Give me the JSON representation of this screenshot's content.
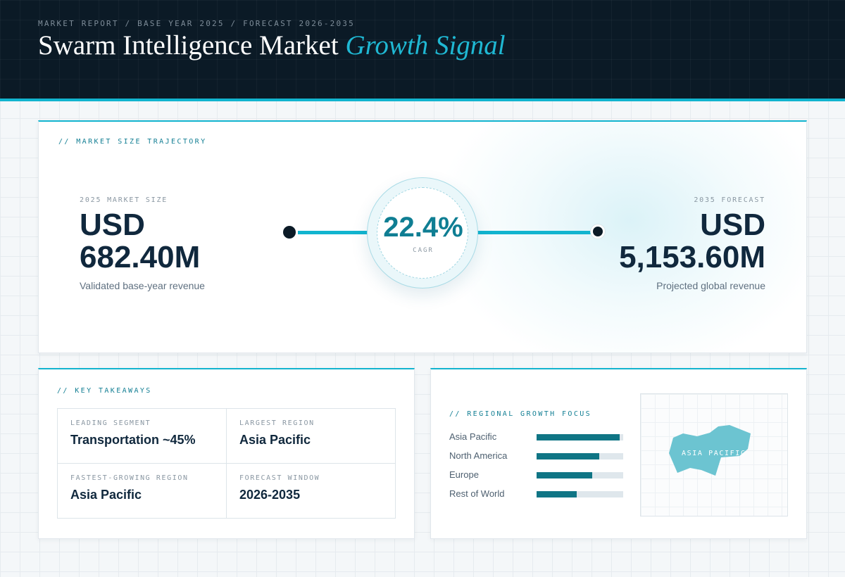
{
  "header": {
    "breadcrumb": "MARKET REPORT / BASE YEAR 2025 / FORECAST 2026-2035",
    "title_main": "Swarm Intelligence Market",
    "title_accent": "Growth Signal"
  },
  "trajectory": {
    "label": "// MARKET SIZE TRAJECTORY",
    "start": {
      "caption": "2025 MARKET SIZE",
      "currency": "USD",
      "value": "682.40M",
      "sub": "Validated base-year revenue"
    },
    "cagr": {
      "value": "22.4%",
      "label": "CAGR"
    },
    "end": {
      "caption": "2035 FORECAST",
      "currency": "USD",
      "value": "5,153.60M",
      "sub": "Projected global revenue"
    }
  },
  "takeaways": {
    "label": "// KEY TAKEAWAYS",
    "items": [
      {
        "caption": "LEADING SEGMENT",
        "value": "Transportation ~45%"
      },
      {
        "caption": "LARGEST REGION",
        "value": "Asia Pacific"
      },
      {
        "caption": "FASTEST-GROWING REGION",
        "value": "Asia Pacific"
      },
      {
        "caption": "FORECAST WINDOW",
        "value": "2026-2035"
      }
    ]
  },
  "regional": {
    "label": "// REGIONAL GROWTH FOCUS",
    "regions": [
      {
        "name": "Asia Pacific",
        "share": 0.96
      },
      {
        "name": "North America",
        "share": 0.72
      },
      {
        "name": "Europe",
        "share": 0.64
      },
      {
        "name": "Rest of World",
        "share": 0.46
      }
    ],
    "map_label": "ASIA PACIFIC"
  },
  "colors": {
    "accent": "#12b4cf",
    "header_bg": "#0b1a26",
    "bar_fill": "#0f7585",
    "map_region": "#6cc4d1"
  }
}
